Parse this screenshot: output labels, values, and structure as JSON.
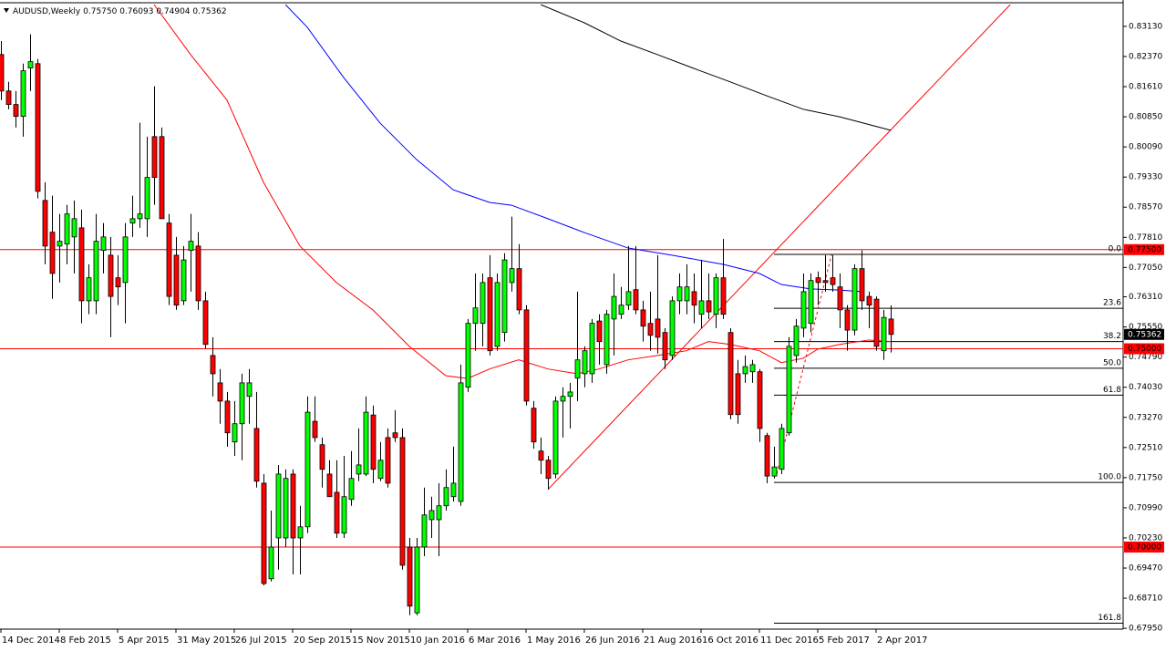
{
  "chart_data": {
    "type": "candlestick",
    "symbol": "AUDUSD,Weekly",
    "ohlc_labels": [
      "0.75750",
      "0.76093",
      "0.74904",
      "0.75362"
    ],
    "up_color": "#00ff00",
    "down_color": "#ff0000",
    "xlim": [
      -0.125,
      153.875
    ],
    "ylim": [
      0.6793,
      0.8368
    ],
    "yticks": [
      {
        "value": 0.8313,
        "label": "0.83130"
      },
      {
        "value": 0.8237,
        "label": "0.82370"
      },
      {
        "value": 0.8161,
        "label": "0.81610"
      },
      {
        "value": 0.8085,
        "label": "0.80850"
      },
      {
        "value": 0.8009,
        "label": "0.80090"
      },
      {
        "value": 0.7933,
        "label": "0.79330"
      },
      {
        "value": 0.7857,
        "label": "0.78570"
      },
      {
        "value": 0.7781,
        "label": "0.77810"
      },
      {
        "value": 0.7705,
        "label": "0.77050"
      },
      {
        "value": 0.7631,
        "label": "0.76310"
      },
      {
        "value": 0.7555,
        "label": "0.75550"
      },
      {
        "value": 0.7479,
        "label": "0.74790"
      },
      {
        "value": 0.7403,
        "label": "0.74030"
      },
      {
        "value": 0.7327,
        "label": "0.73270"
      },
      {
        "value": 0.7251,
        "label": "0.72510"
      },
      {
        "value": 0.7175,
        "label": "0.71750"
      },
      {
        "value": 0.7099,
        "label": "0.70990"
      },
      {
        "value": 0.7023,
        "label": "0.70230"
      },
      {
        "value": 0.6947,
        "label": "0.69470"
      },
      {
        "value": 0.6871,
        "label": "0.68710"
      },
      {
        "value": 0.6795,
        "label": "0.67950"
      }
    ],
    "xticks": [
      {
        "value": 0,
        "label": "14 Dec 2014"
      },
      {
        "value": 8,
        "label": "8 Feb 2015"
      },
      {
        "value": 16,
        "label": "5 Apr 2015"
      },
      {
        "value": 24,
        "label": "31 May 2015"
      },
      {
        "value": 32,
        "label": "26 Jul 2015"
      },
      {
        "value": 40,
        "label": "20 Sep 2015"
      },
      {
        "value": 48,
        "label": "15 Nov 2015"
      },
      {
        "value": 56,
        "label": "10 Jan 2016"
      },
      {
        "value": 64,
        "label": "6 Mar 2016"
      },
      {
        "value": 72,
        "label": "1 May 2016"
      },
      {
        "value": 80,
        "label": "26 Jun 2016"
      },
      {
        "value": 88,
        "label": "21 Aug 2016"
      },
      {
        "value": 96,
        "label": "16 Oct 2016"
      },
      {
        "value": 104,
        "label": "11 Dec 2016"
      },
      {
        "value": 112,
        "label": "5 Feb 2017"
      },
      {
        "value": 120,
        "label": "2 Apr 2017"
      }
    ],
    "candles": [
      [
        0.8242,
        0.8276,
        0.8127,
        0.815
      ],
      [
        0.815,
        0.8173,
        0.8104,
        0.8116
      ],
      [
        0.8116,
        0.815,
        0.8058,
        0.8086
      ],
      [
        0.8086,
        0.8219,
        0.8035,
        0.8201
      ],
      [
        0.8208,
        0.8293,
        0.815,
        0.8224
      ],
      [
        0.8219,
        0.8231,
        0.7879,
        0.7897
      ],
      [
        0.7874,
        0.792,
        0.7713,
        0.7759
      ],
      [
        0.7794,
        0.7886,
        0.7626,
        0.769
      ],
      [
        0.7759,
        0.784,
        0.7667,
        0.7771
      ],
      [
        0.7764,
        0.7863,
        0.7713,
        0.784
      ],
      [
        0.7782,
        0.7874,
        0.769,
        0.7828
      ],
      [
        0.7805,
        0.7851,
        0.7564,
        0.7621
      ],
      [
        0.7621,
        0.7713,
        0.7587,
        0.7679
      ],
      [
        0.7621,
        0.784,
        0.7587,
        0.7771
      ],
      [
        0.7748,
        0.7817,
        0.769,
        0.7782
      ],
      [
        0.7736,
        0.7782,
        0.7529,
        0.7632
      ],
      [
        0.7679,
        0.7736,
        0.761,
        0.7656
      ],
      [
        0.7667,
        0.7817,
        0.7564,
        0.7782
      ],
      [
        0.7817,
        0.7886,
        0.7782,
        0.7828
      ],
      [
        0.7828,
        0.807,
        0.7805,
        0.784
      ],
      [
        0.7828,
        0.8035,
        0.7782,
        0.7932
      ],
      [
        0.8035,
        0.8162,
        0.7863,
        0.7932
      ],
      [
        0.8035,
        0.8058,
        0.7828,
        0.7828
      ],
      [
        0.7817,
        0.784,
        0.761,
        0.7632
      ],
      [
        0.7736,
        0.7782,
        0.7598,
        0.761
      ],
      [
        0.7621,
        0.7759,
        0.761,
        0.7724
      ],
      [
        0.7748,
        0.784,
        0.7644,
        0.7771
      ],
      [
        0.7759,
        0.7794,
        0.7598,
        0.7621
      ],
      [
        0.7621,
        0.7644,
        0.7501,
        0.7511
      ],
      [
        0.7483,
        0.7529,
        0.738,
        0.7437
      ],
      [
        0.7414,
        0.7449,
        0.7311,
        0.7368
      ],
      [
        0.7368,
        0.7391,
        0.7253,
        0.7288
      ],
      [
        0.7265,
        0.7368,
        0.723,
        0.7311
      ],
      [
        0.7311,
        0.7437,
        0.7219,
        0.7414
      ],
      [
        0.738,
        0.7449,
        0.7311,
        0.7414
      ],
      [
        0.7299,
        0.7391,
        0.715,
        0.7166
      ],
      [
        0.7161,
        0.7184,
        0.6903,
        0.6908
      ],
      [
        0.692,
        0.7092,
        0.6913,
        0.7
      ],
      [
        0.7023,
        0.7207,
        0.6943,
        0.7184
      ],
      [
        0.7023,
        0.7196,
        0.7,
        0.7173
      ],
      [
        0.7184,
        0.7196,
        0.6931,
        0.7023
      ],
      [
        0.7023,
        0.7104,
        0.6931,
        0.7051
      ],
      [
        0.7051,
        0.738,
        0.7035,
        0.734
      ],
      [
        0.7317,
        0.738,
        0.7265,
        0.7276
      ],
      [
        0.7258,
        0.7276,
        0.715,
        0.7196
      ],
      [
        0.7184,
        0.7219,
        0.7127,
        0.7127
      ],
      [
        0.7138,
        0.7219,
        0.7023,
        0.7035
      ],
      [
        0.7035,
        0.723,
        0.7023,
        0.7127
      ],
      [
        0.712,
        0.7242,
        0.7104,
        0.7173
      ],
      [
        0.7184,
        0.7299,
        0.7166,
        0.7207
      ],
      [
        0.7184,
        0.738,
        0.7179,
        0.734
      ],
      [
        0.7333,
        0.7357,
        0.7161,
        0.7196
      ],
      [
        0.7173,
        0.7265,
        0.7166,
        0.7219
      ],
      [
        0.7276,
        0.7299,
        0.715,
        0.7161
      ],
      [
        0.7288,
        0.7345,
        0.7265,
        0.7276
      ],
      [
        0.7276,
        0.7299,
        0.6943,
        0.6954
      ],
      [
        0.7,
        0.7023,
        0.6828,
        0.6851
      ],
      [
        0.6834,
        0.7023,
        0.6828,
        0.7
      ],
      [
        0.7,
        0.715,
        0.6977,
        0.7081
      ],
      [
        0.7069,
        0.7127,
        0.7023,
        0.7092
      ],
      [
        0.7069,
        0.7161,
        0.6977,
        0.7104
      ],
      [
        0.7104,
        0.7196,
        0.7092,
        0.715
      ],
      [
        0.7127,
        0.7253,
        0.7115,
        0.7161
      ],
      [
        0.7115,
        0.746,
        0.7104,
        0.7414
      ],
      [
        0.7403,
        0.7575,
        0.7391,
        0.7564
      ],
      [
        0.7564,
        0.769,
        0.7495,
        0.7603
      ],
      [
        0.7564,
        0.769,
        0.7506,
        0.7667
      ],
      [
        0.7679,
        0.7736,
        0.7483,
        0.7495
      ],
      [
        0.7506,
        0.769,
        0.7495,
        0.7667
      ],
      [
        0.7541,
        0.7741,
        0.7518,
        0.7724
      ],
      [
        0.7667,
        0.7833,
        0.7644,
        0.7702
      ],
      [
        0.7702,
        0.7764,
        0.7587,
        0.7598
      ],
      [
        0.7598,
        0.761,
        0.7357,
        0.7368
      ],
      [
        0.735,
        0.7368,
        0.7248,
        0.7265
      ],
      [
        0.7242,
        0.7276,
        0.7184,
        0.7219
      ],
      [
        0.7219,
        0.723,
        0.7145,
        0.7173
      ],
      [
        0.7184,
        0.738,
        0.7173,
        0.7368
      ],
      [
        0.7368,
        0.7403,
        0.7276,
        0.738
      ],
      [
        0.738,
        0.7414,
        0.7299,
        0.7391
      ],
      [
        0.7426,
        0.7644,
        0.7368,
        0.7472
      ],
      [
        0.7437,
        0.7506,
        0.7403,
        0.7495
      ],
      [
        0.7437,
        0.7575,
        0.7414,
        0.7564
      ],
      [
        0.757,
        0.7587,
        0.746,
        0.7518
      ],
      [
        0.746,
        0.7598,
        0.7437,
        0.7587
      ],
      [
        0.7575,
        0.769,
        0.7483,
        0.7632
      ],
      [
        0.7587,
        0.7656,
        0.7575,
        0.761
      ],
      [
        0.761,
        0.7759,
        0.7598,
        0.7644
      ],
      [
        0.7649,
        0.7759,
        0.7587,
        0.7598
      ],
      [
        0.7598,
        0.7621,
        0.7518,
        0.7557
      ],
      [
        0.7564,
        0.7644,
        0.7495,
        0.7534
      ],
      [
        0.7575,
        0.7736,
        0.7488,
        0.7529
      ],
      [
        0.7541,
        0.7552,
        0.7449,
        0.7472
      ],
      [
        0.7483,
        0.7632,
        0.7472,
        0.7621
      ],
      [
        0.7621,
        0.769,
        0.7587,
        0.7656
      ],
      [
        0.7621,
        0.7713,
        0.7587,
        0.7656
      ],
      [
        0.7644,
        0.769,
        0.7564,
        0.761
      ],
      [
        0.7587,
        0.7724,
        0.7552,
        0.7621
      ],
      [
        0.7621,
        0.769,
        0.7575,
        0.7593
      ],
      [
        0.7587,
        0.769,
        0.7552,
        0.7679
      ],
      [
        0.7679,
        0.7777,
        0.7575,
        0.7587
      ],
      [
        0.7541,
        0.7552,
        0.7322,
        0.7334
      ],
      [
        0.7437,
        0.7472,
        0.7311,
        0.7334
      ],
      [
        0.7437,
        0.7483,
        0.7414,
        0.7455
      ],
      [
        0.7442,
        0.7472,
        0.7414,
        0.746
      ],
      [
        0.7442,
        0.7449,
        0.7265,
        0.7299
      ],
      [
        0.7281,
        0.7288,
        0.7161,
        0.7179
      ],
      [
        0.7179,
        0.7253,
        0.7173,
        0.7202
      ],
      [
        0.7196,
        0.7311,
        0.7184,
        0.7299
      ],
      [
        0.7288,
        0.7529,
        0.7281,
        0.7506
      ],
      [
        0.7483,
        0.7575,
        0.7465,
        0.7557
      ],
      [
        0.7552,
        0.769,
        0.7529,
        0.7644
      ],
      [
        0.7564,
        0.769,
        0.7541,
        0.7672
      ],
      [
        0.7679,
        0.7695,
        0.761,
        0.7667
      ],
      [
        0.7672,
        0.7736,
        0.7644,
        0.7667
      ],
      [
        0.7679,
        0.7736,
        0.7644,
        0.7662
      ],
      [
        0.7656,
        0.769,
        0.7552,
        0.7598
      ],
      [
        0.7598,
        0.761,
        0.7495,
        0.7547
      ],
      [
        0.7547,
        0.7713,
        0.7534,
        0.7702
      ],
      [
        0.7702,
        0.7748,
        0.7598,
        0.7621
      ],
      [
        0.7632,
        0.7644,
        0.7552,
        0.761
      ],
      [
        0.7625,
        0.7632,
        0.7495,
        0.7506
      ],
      [
        0.7495,
        0.7598,
        0.7472,
        0.7579
      ],
      [
        0.7575,
        0.76093,
        0.74904,
        0.75362
      ]
    ],
    "series": [
      {
        "color": "#ff0000",
        "x": [
          21,
          26,
          31,
          36,
          41,
          46,
          51,
          56,
          61,
          64,
          67,
          71,
          75,
          79,
          82,
          86,
          90,
          94,
          97,
          100,
          104,
          107,
          110,
          112,
          115,
          119,
          122
        ],
        "values": [
          0.8368,
          0.8242,
          0.8127,
          0.792,
          0.7759,
          0.7667,
          0.7598,
          0.7506,
          0.7432,
          0.7425,
          0.7449,
          0.7472,
          0.7449,
          0.7437,
          0.7449,
          0.7472,
          0.7483,
          0.7495,
          0.7518,
          0.7511,
          0.7495,
          0.7465,
          0.7476,
          0.7499,
          0.7511,
          0.7522,
          0.7518
        ]
      },
      {
        "color": "#0000ff",
        "x": [
          39,
          42,
          47,
          52,
          57,
          62,
          67,
          70,
          75,
          80,
          86,
          92,
          99,
          104,
          107,
          111,
          115,
          118
        ],
        "values": [
          0.8368,
          0.8311,
          0.8184,
          0.8069,
          0.7977,
          0.7901,
          0.7869,
          0.7862,
          0.7828,
          0.7793,
          0.7754,
          0.7736,
          0.7713,
          0.769,
          0.7662,
          0.7651,
          0.7648,
          0.7644
        ]
      },
      {
        "color": "#000000",
        "x": [
          74,
          80,
          85,
          90,
          95,
          100,
          105,
          110,
          115,
          122
        ],
        "values": [
          0.8368,
          0.8322,
          0.8276,
          0.8242,
          0.8207,
          0.8173,
          0.8138,
          0.8104,
          0.8085,
          0.8051
        ]
      }
    ],
    "hlines": [
      {
        "value": 0.775,
        "label": "0.77500"
      },
      {
        "value": 0.75,
        "label": "0.75000"
      },
      {
        "value": 0.7,
        "label": "0.70000"
      }
    ],
    "hline_color": "#ff0000",
    "trendline": {
      "color": "#ff0000",
      "x": [
        75,
        138.4
      ],
      "values": [
        0.7145,
        0.8368
      ]
    },
    "fibonacci": {
      "x0": 106,
      "connector_x": [
        106.4,
        113.9
      ],
      "connector_values": [
        0.7185,
        0.7737
      ],
      "levels": [
        {
          "label": "0.0",
          "value": 0.7738
        },
        {
          "label": "23.6",
          "value": 0.7602
        },
        {
          "label": "38.2",
          "value": 0.7518
        },
        {
          "label": "50.0",
          "value": 0.7451
        },
        {
          "label": "61.8",
          "value": 0.7383
        },
        {
          "label": "100.0",
          "value": 0.7163
        },
        {
          "label": "161.8",
          "value": 0.6808
        }
      ]
    }
  }
}
